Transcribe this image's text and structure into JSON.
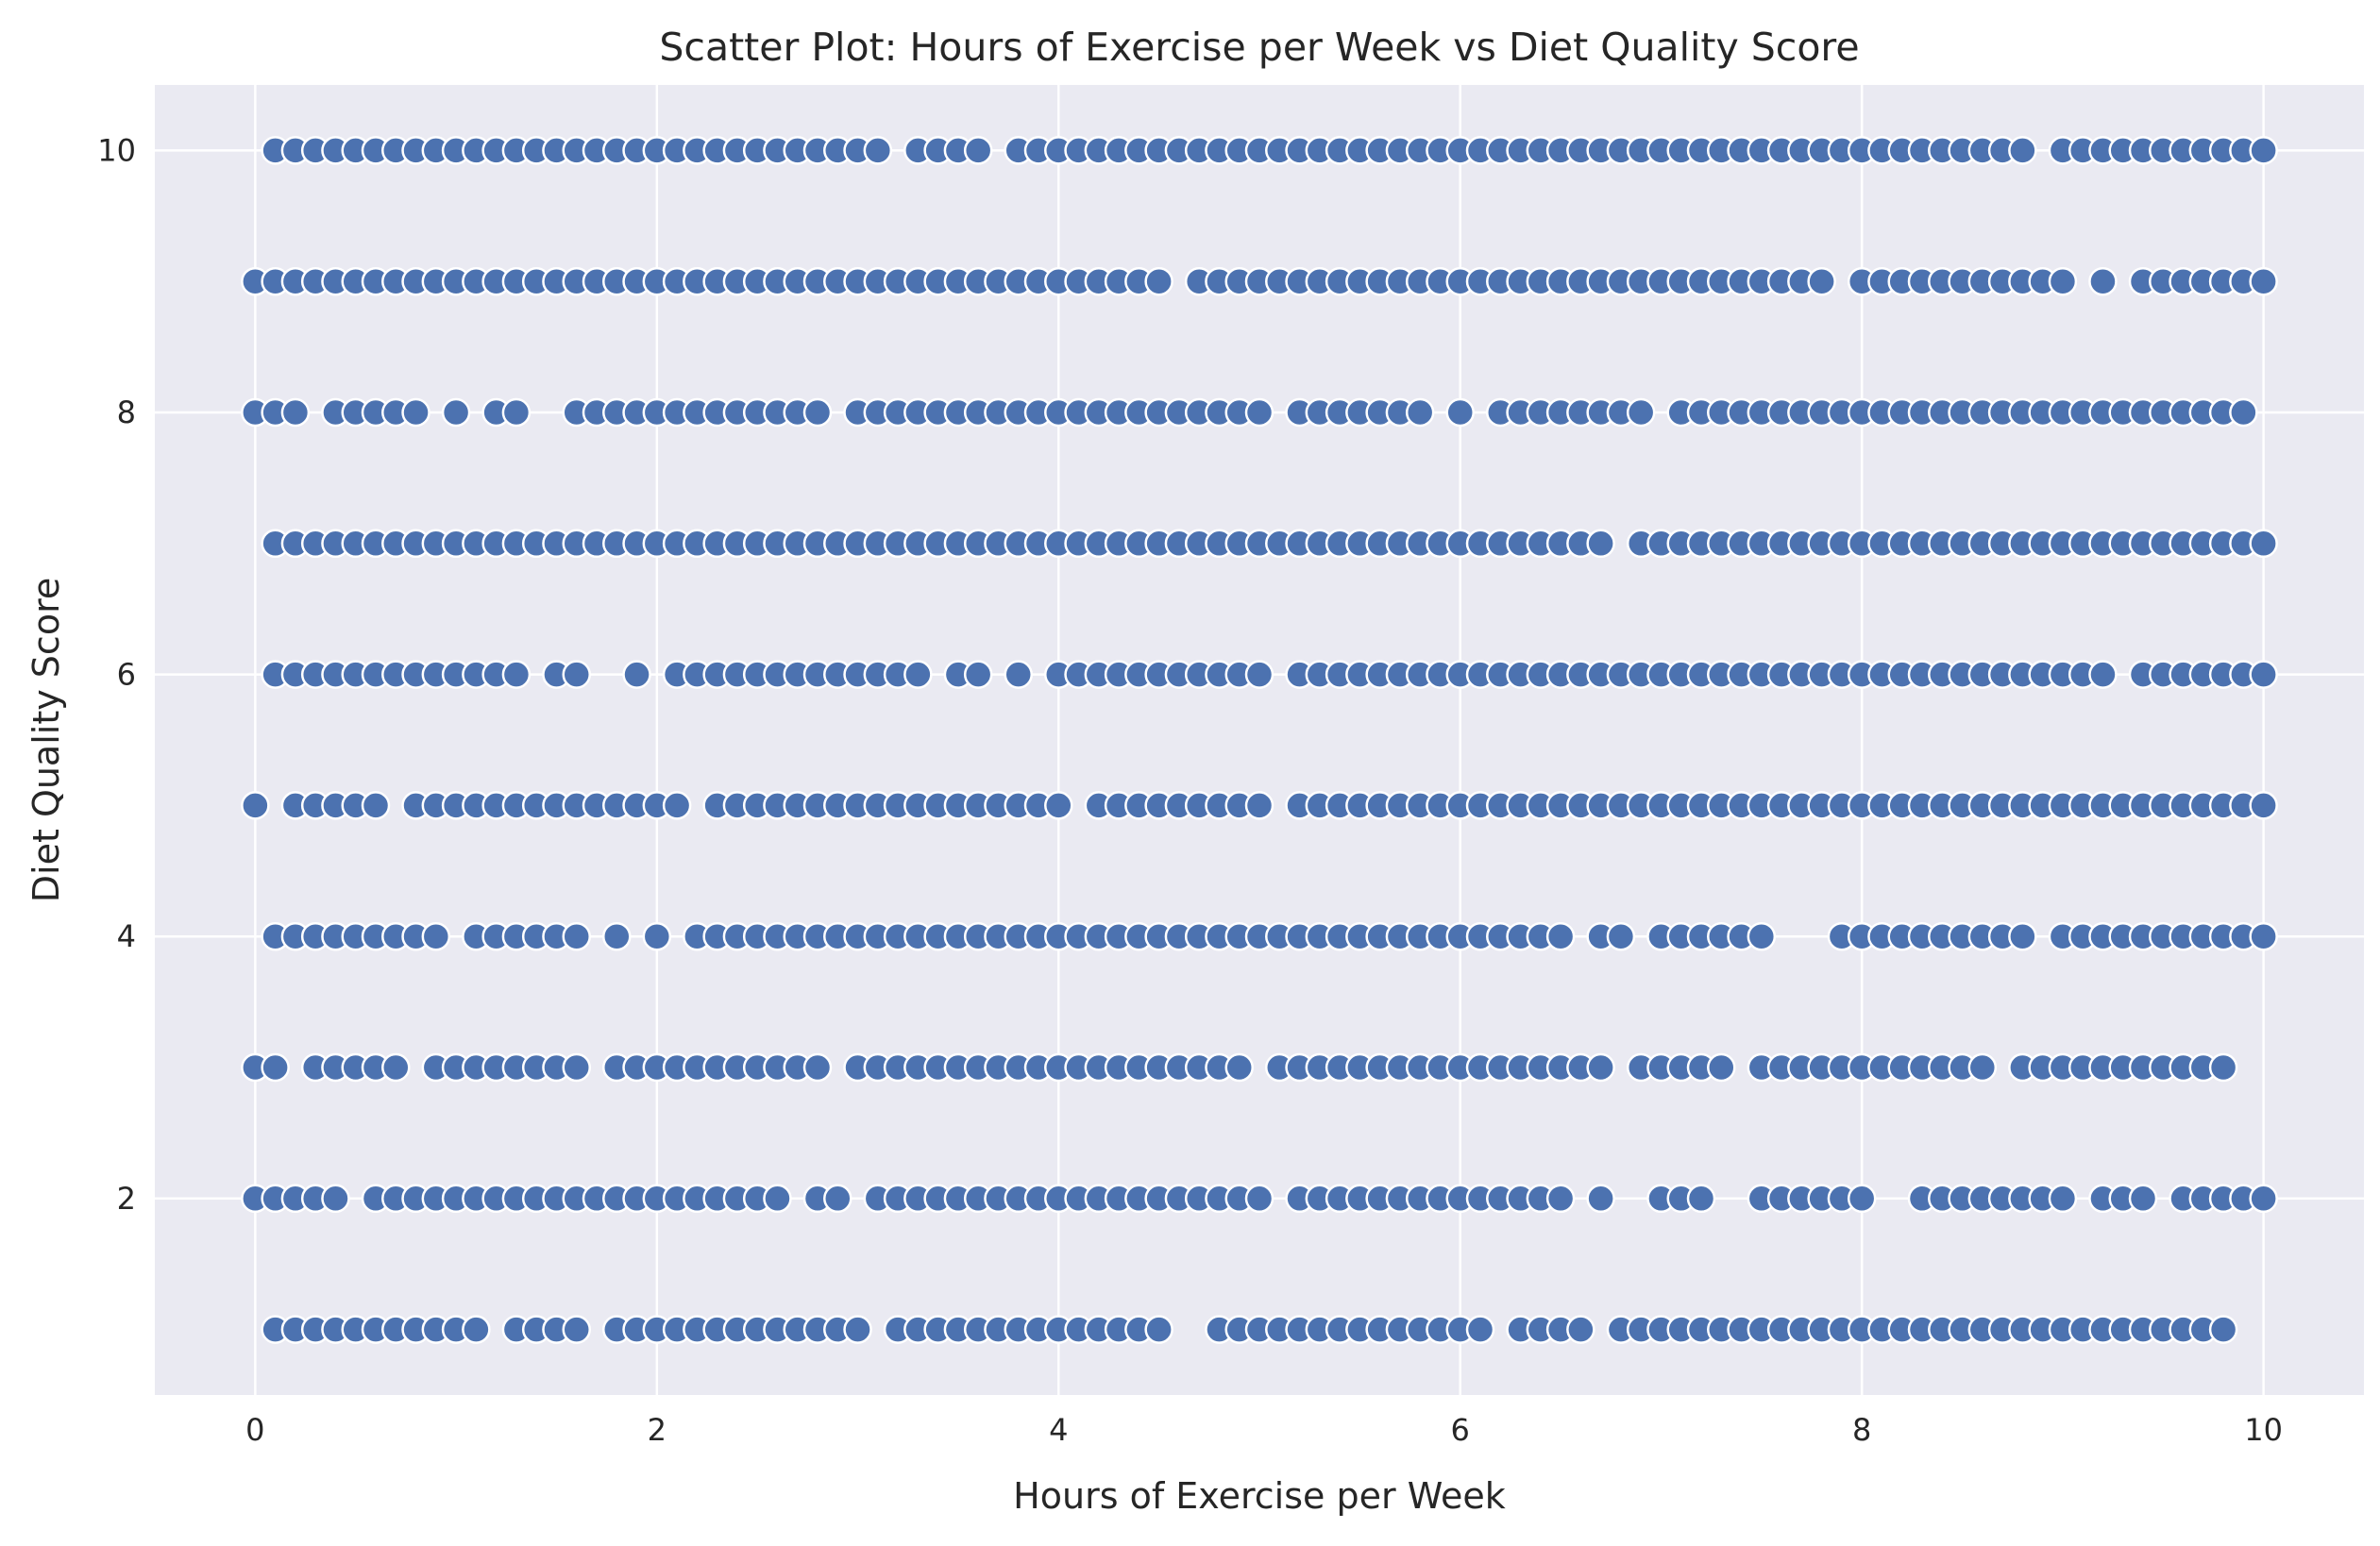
{
  "chart_data": {
    "type": "scatter",
    "title": "Scatter Plot: Hours of Exercise per Week vs Diet Quality Score",
    "xlabel": "Hours of Exercise per Week",
    "ylabel": "Diet Quality Score",
    "xlim": [
      -0.5,
      10.5
    ],
    "ylim": [
      0.5,
      10.5
    ],
    "xticks": [
      0,
      2,
      4,
      6,
      8,
      10
    ],
    "yticks": [
      2,
      4,
      6,
      8,
      10
    ],
    "grid": true,
    "point_color": "#4c72b0",
    "background_color": "#eaeaf2",
    "rows": [
      {
        "y": 10,
        "x": [
          0.1,
          0.2,
          0.3,
          0.4,
          0.5,
          0.6,
          0.7,
          0.8,
          0.9,
          1.0,
          1.1,
          1.2,
          1.3,
          1.4,
          1.5,
          1.6,
          1.7,
          1.8,
          1.9,
          2.0,
          2.1,
          2.2,
          2.3,
          2.4,
          2.5,
          2.6,
          2.7,
          2.8,
          2.9,
          3.0,
          3.1,
          3.3,
          3.4,
          3.5,
          3.6,
          3.8,
          3.9,
          4.0,
          4.1,
          4.2,
          4.3,
          4.4,
          4.5,
          4.6,
          4.7,
          4.8,
          4.9,
          5.0,
          5.1,
          5.2,
          5.3,
          5.4,
          5.5,
          5.6,
          5.7,
          5.8,
          5.9,
          6.0,
          6.1,
          6.2,
          6.3,
          6.4,
          6.5,
          6.6,
          6.7,
          6.8,
          6.9,
          7.0,
          7.1,
          7.2,
          7.3,
          7.4,
          7.5,
          7.6,
          7.7,
          7.8,
          7.9,
          8.0,
          8.1,
          8.2,
          8.3,
          8.4,
          8.5,
          8.6,
          8.7,
          8.8,
          9.0,
          9.1,
          9.2,
          9.3,
          9.4,
          9.5,
          9.6,
          9.7,
          9.8,
          9.9,
          10.0
        ]
      },
      {
        "y": 9,
        "x": [
          0.0,
          0.1,
          0.2,
          0.3,
          0.4,
          0.5,
          0.6,
          0.7,
          0.8,
          0.9,
          1.0,
          1.1,
          1.2,
          1.3,
          1.4,
          1.5,
          1.6,
          1.7,
          1.8,
          1.9,
          2.0,
          2.1,
          2.2,
          2.3,
          2.4,
          2.5,
          2.6,
          2.7,
          2.8,
          2.9,
          3.0,
          3.1,
          3.2,
          3.3,
          3.4,
          3.5,
          3.6,
          3.7,
          3.8,
          3.9,
          4.0,
          4.1,
          4.2,
          4.3,
          4.4,
          4.5,
          4.7,
          4.8,
          4.9,
          5.0,
          5.1,
          5.2,
          5.3,
          5.4,
          5.5,
          5.6,
          5.7,
          5.8,
          5.9,
          6.0,
          6.1,
          6.2,
          6.3,
          6.4,
          6.5,
          6.6,
          6.7,
          6.8,
          6.9,
          7.0,
          7.1,
          7.2,
          7.3,
          7.4,
          7.5,
          7.6,
          7.7,
          7.8,
          8.0,
          8.1,
          8.2,
          8.3,
          8.4,
          8.5,
          8.6,
          8.7,
          8.8,
          8.9,
          9.0,
          9.2,
          9.4,
          9.5,
          9.6,
          9.7,
          9.8,
          9.9,
          10.0
        ]
      },
      {
        "y": 8,
        "x": [
          0.0,
          0.1,
          0.2,
          0.4,
          0.5,
          0.6,
          0.7,
          0.8,
          1.0,
          1.2,
          1.3,
          1.6,
          1.7,
          1.8,
          1.9,
          2.0,
          2.1,
          2.2,
          2.3,
          2.4,
          2.5,
          2.6,
          2.7,
          2.8,
          3.0,
          3.1,
          3.2,
          3.3,
          3.4,
          3.5,
          3.6,
          3.7,
          3.8,
          3.9,
          4.0,
          4.1,
          4.2,
          4.3,
          4.4,
          4.5,
          4.6,
          4.7,
          4.8,
          4.9,
          5.0,
          5.2,
          5.3,
          5.4,
          5.5,
          5.6,
          5.7,
          5.8,
          6.0,
          6.2,
          6.3,
          6.4,
          6.5,
          6.6,
          6.7,
          6.8,
          6.9,
          7.1,
          7.2,
          7.3,
          7.4,
          7.5,
          7.6,
          7.7,
          7.8,
          7.9,
          8.0,
          8.1,
          8.2,
          8.3,
          8.4,
          8.5,
          8.6,
          8.7,
          8.8,
          8.9,
          9.0,
          9.1,
          9.2,
          9.3,
          9.4,
          9.5,
          9.6,
          9.7,
          9.8,
          9.9
        ]
      },
      {
        "y": 7,
        "x": [
          0.1,
          0.2,
          0.3,
          0.4,
          0.5,
          0.6,
          0.7,
          0.8,
          0.9,
          1.0,
          1.1,
          1.2,
          1.3,
          1.4,
          1.5,
          1.6,
          1.7,
          1.8,
          1.9,
          2.0,
          2.1,
          2.2,
          2.3,
          2.4,
          2.5,
          2.6,
          2.7,
          2.8,
          2.9,
          3.0,
          3.1,
          3.2,
          3.3,
          3.4,
          3.5,
          3.6,
          3.7,
          3.8,
          3.9,
          4.0,
          4.1,
          4.2,
          4.3,
          4.4,
          4.5,
          4.6,
          4.7,
          4.8,
          4.9,
          5.0,
          5.1,
          5.2,
          5.3,
          5.4,
          5.5,
          5.6,
          5.7,
          5.8,
          5.9,
          6.0,
          6.1,
          6.2,
          6.3,
          6.4,
          6.5,
          6.6,
          6.7,
          6.9,
          7.0,
          7.1,
          7.2,
          7.3,
          7.4,
          7.5,
          7.6,
          7.7,
          7.8,
          7.9,
          8.0,
          8.1,
          8.2,
          8.3,
          8.4,
          8.5,
          8.6,
          8.7,
          8.8,
          8.9,
          9.0,
          9.1,
          9.2,
          9.3,
          9.4,
          9.5,
          9.6,
          9.7,
          9.8,
          9.9,
          10.0
        ]
      },
      {
        "y": 6,
        "x": [
          0.1,
          0.2,
          0.3,
          0.4,
          0.5,
          0.6,
          0.7,
          0.8,
          0.9,
          1.0,
          1.1,
          1.2,
          1.3,
          1.5,
          1.6,
          1.9,
          2.1,
          2.2,
          2.3,
          2.4,
          2.5,
          2.6,
          2.7,
          2.8,
          2.9,
          3.0,
          3.1,
          3.2,
          3.3,
          3.5,
          3.6,
          3.8,
          4.0,
          4.1,
          4.2,
          4.3,
          4.4,
          4.5,
          4.6,
          4.7,
          4.8,
          4.9,
          5.0,
          5.2,
          5.3,
          5.4,
          5.5,
          5.6,
          5.7,
          5.8,
          5.9,
          6.0,
          6.1,
          6.2,
          6.3,
          6.4,
          6.5,
          6.6,
          6.7,
          6.8,
          6.9,
          7.0,
          7.1,
          7.2,
          7.3,
          7.4,
          7.5,
          7.6,
          7.7,
          7.8,
          7.9,
          8.0,
          8.1,
          8.2,
          8.3,
          8.4,
          8.5,
          8.6,
          8.7,
          8.8,
          8.9,
          9.0,
          9.1,
          9.2,
          9.4,
          9.5,
          9.6,
          9.7,
          9.8,
          9.9,
          10.0
        ]
      },
      {
        "y": 5,
        "x": [
          0.0,
          0.2,
          0.3,
          0.4,
          0.5,
          0.6,
          0.8,
          0.9,
          1.0,
          1.1,
          1.2,
          1.3,
          1.4,
          1.5,
          1.6,
          1.7,
          1.8,
          1.9,
          2.0,
          2.1,
          2.3,
          2.4,
          2.5,
          2.6,
          2.7,
          2.8,
          2.9,
          3.0,
          3.1,
          3.2,
          3.3,
          3.4,
          3.5,
          3.6,
          3.7,
          3.8,
          3.9,
          4.0,
          4.2,
          4.3,
          4.4,
          4.5,
          4.6,
          4.7,
          4.8,
          4.9,
          5.0,
          5.2,
          5.3,
          5.4,
          5.5,
          5.6,
          5.7,
          5.8,
          5.9,
          6.0,
          6.1,
          6.2,
          6.3,
          6.4,
          6.5,
          6.6,
          6.7,
          6.8,
          6.9,
          7.0,
          7.1,
          7.2,
          7.3,
          7.4,
          7.5,
          7.6,
          7.7,
          7.8,
          7.9,
          8.0,
          8.1,
          8.2,
          8.3,
          8.4,
          8.5,
          8.6,
          8.7,
          8.8,
          8.9,
          9.0,
          9.1,
          9.2,
          9.3,
          9.4,
          9.5,
          9.6,
          9.7,
          9.8,
          9.9,
          10.0
        ]
      },
      {
        "y": 4,
        "x": [
          0.1,
          0.2,
          0.3,
          0.4,
          0.5,
          0.6,
          0.7,
          0.8,
          0.9,
          1.1,
          1.2,
          1.3,
          1.4,
          1.5,
          1.6,
          1.8,
          2.0,
          2.2,
          2.3,
          2.4,
          2.5,
          2.6,
          2.7,
          2.8,
          2.9,
          3.0,
          3.1,
          3.2,
          3.3,
          3.4,
          3.5,
          3.6,
          3.7,
          3.8,
          3.9,
          4.0,
          4.1,
          4.2,
          4.3,
          4.4,
          4.5,
          4.6,
          4.7,
          4.8,
          4.9,
          5.0,
          5.1,
          5.2,
          5.3,
          5.4,
          5.5,
          5.6,
          5.7,
          5.8,
          5.9,
          6.0,
          6.1,
          6.2,
          6.3,
          6.4,
          6.5,
          6.7,
          6.8,
          7.0,
          7.1,
          7.2,
          7.3,
          7.4,
          7.5,
          7.9,
          8.0,
          8.1,
          8.2,
          8.3,
          8.4,
          8.5,
          8.6,
          8.7,
          8.8,
          9.0,
          9.1,
          9.2,
          9.3,
          9.4,
          9.5,
          9.6,
          9.7,
          9.8,
          9.9,
          10.0
        ]
      },
      {
        "y": 3,
        "x": [
          0.0,
          0.1,
          0.3,
          0.4,
          0.5,
          0.6,
          0.7,
          0.9,
          1.0,
          1.1,
          1.2,
          1.3,
          1.4,
          1.5,
          1.6,
          1.8,
          1.9,
          2.0,
          2.1,
          2.2,
          2.3,
          2.4,
          2.5,
          2.6,
          2.7,
          2.8,
          3.0,
          3.1,
          3.2,
          3.3,
          3.4,
          3.5,
          3.6,
          3.7,
          3.8,
          3.9,
          4.0,
          4.1,
          4.2,
          4.3,
          4.4,
          4.5,
          4.6,
          4.7,
          4.8,
          4.9,
          5.1,
          5.2,
          5.3,
          5.4,
          5.5,
          5.6,
          5.7,
          5.8,
          5.9,
          6.0,
          6.1,
          6.2,
          6.3,
          6.4,
          6.5,
          6.6,
          6.7,
          6.9,
          7.0,
          7.1,
          7.2,
          7.3,
          7.5,
          7.6,
          7.7,
          7.8,
          7.9,
          8.0,
          8.1,
          8.2,
          8.3,
          8.4,
          8.5,
          8.6,
          8.8,
          8.9,
          9.0,
          9.1,
          9.2,
          9.3,
          9.4,
          9.5,
          9.6,
          9.7,
          9.8
        ]
      },
      {
        "y": 2,
        "x": [
          0.0,
          0.1,
          0.2,
          0.3,
          0.4,
          0.6,
          0.7,
          0.8,
          0.9,
          1.0,
          1.1,
          1.2,
          1.3,
          1.4,
          1.5,
          1.6,
          1.7,
          1.8,
          1.9,
          2.0,
          2.1,
          2.2,
          2.3,
          2.4,
          2.5,
          2.6,
          2.8,
          2.9,
          3.1,
          3.2,
          3.3,
          3.4,
          3.5,
          3.6,
          3.7,
          3.8,
          3.9,
          4.0,
          4.1,
          4.2,
          4.3,
          4.4,
          4.5,
          4.6,
          4.7,
          4.8,
          4.9,
          5.0,
          5.2,
          5.3,
          5.4,
          5.5,
          5.6,
          5.7,
          5.8,
          5.9,
          6.0,
          6.1,
          6.2,
          6.3,
          6.4,
          6.5,
          6.7,
          7.0,
          7.1,
          7.2,
          7.5,
          7.6,
          7.7,
          7.8,
          7.9,
          8.0,
          8.3,
          8.4,
          8.5,
          8.6,
          8.7,
          8.8,
          8.9,
          9.0,
          9.2,
          9.3,
          9.4,
          9.6,
          9.7,
          9.8,
          9.9,
          10.0
        ]
      },
      {
        "y": 1,
        "x": [
          0.1,
          0.2,
          0.3,
          0.4,
          0.5,
          0.6,
          0.7,
          0.8,
          0.9,
          1.0,
          1.1,
          1.3,
          1.4,
          1.5,
          1.6,
          1.8,
          1.9,
          2.0,
          2.1,
          2.2,
          2.3,
          2.4,
          2.5,
          2.6,
          2.7,
          2.8,
          2.9,
          3.0,
          3.2,
          3.3,
          3.4,
          3.5,
          3.6,
          3.7,
          3.8,
          3.9,
          4.0,
          4.1,
          4.2,
          4.3,
          4.4,
          4.5,
          4.8,
          4.9,
          5.0,
          5.1,
          5.2,
          5.3,
          5.4,
          5.5,
          5.6,
          5.7,
          5.8,
          5.9,
          6.0,
          6.1,
          6.3,
          6.4,
          6.5,
          6.6,
          6.8,
          6.9,
          7.0,
          7.1,
          7.2,
          7.3,
          7.4,
          7.5,
          7.6,
          7.7,
          7.8,
          7.9,
          8.0,
          8.1,
          8.2,
          8.3,
          8.4,
          8.5,
          8.6,
          8.7,
          8.8,
          8.9,
          9.0,
          9.1,
          9.2,
          9.3,
          9.4,
          9.5,
          9.6,
          9.7,
          9.8
        ]
      }
    ]
  }
}
